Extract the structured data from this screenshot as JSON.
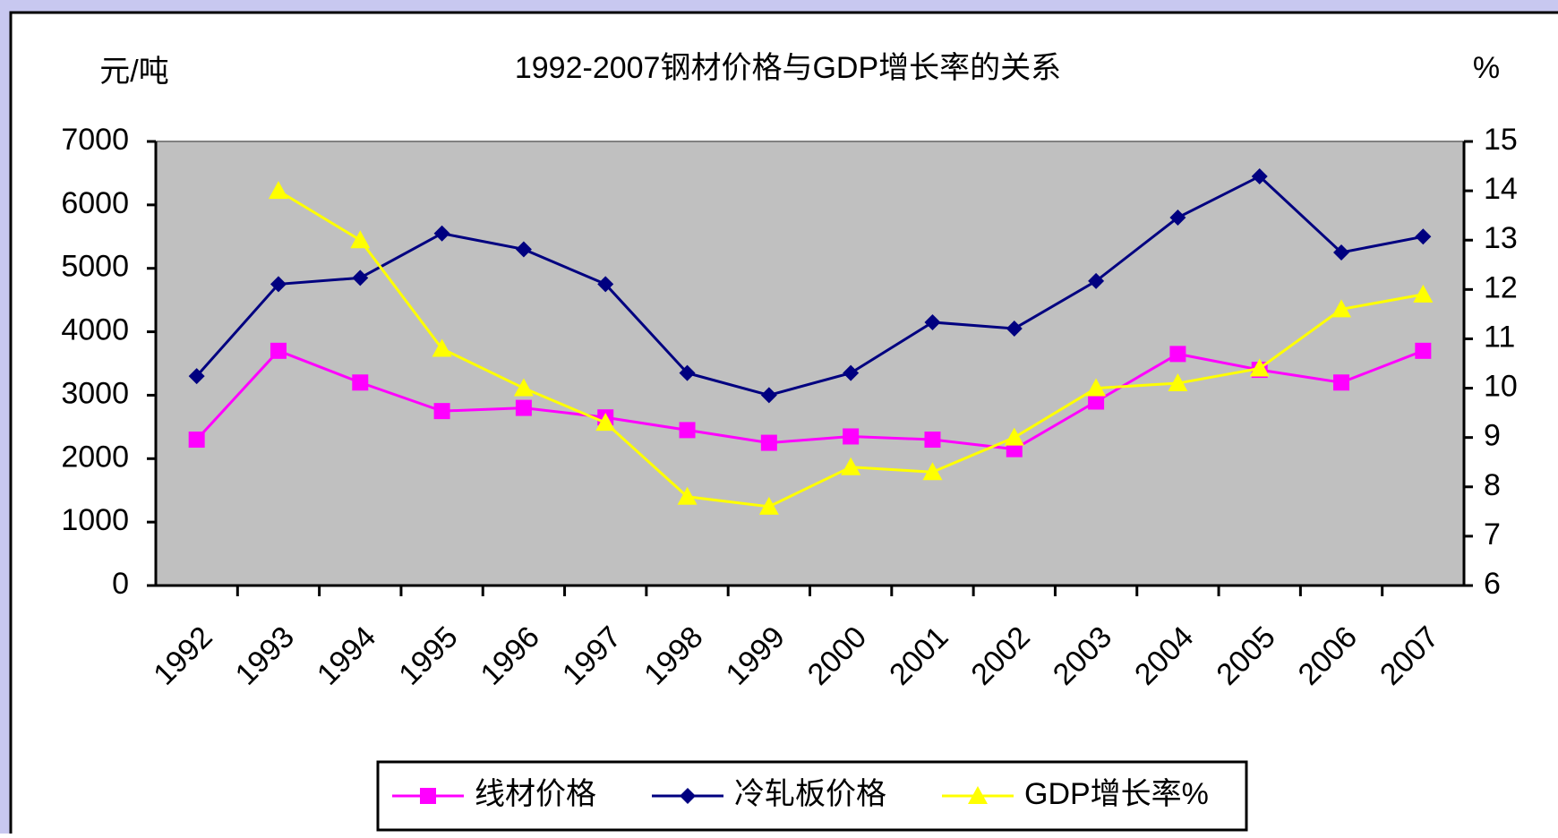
{
  "chart_data": {
    "type": "line",
    "title": "1992-2007钢材价格与GDP增长率的关系",
    "y_label": "元/吨",
    "y2_label": "%",
    "categories": [
      "1992",
      "1993",
      "1994",
      "1995",
      "1996",
      "1997",
      "1998",
      "1999",
      "2000",
      "2001",
      "2002",
      "2003",
      "2004",
      "2005",
      "2006",
      "2007"
    ],
    "series": [
      {
        "name": "线材价格",
        "color": "#ff00ff",
        "marker": "square",
        "values": [
          2300,
          3700,
          3200,
          2750,
          2800,
          2650,
          2450,
          2250,
          2350,
          2300,
          2150,
          2900,
          3650,
          3400,
          3200,
          3700
        ]
      },
      {
        "name": "冷轧板价格",
        "color": "#000080",
        "marker": "diamond",
        "values": [
          3300,
          4750,
          4850,
          5550,
          5300,
          4750,
          3350,
          3000,
          3350,
          4150,
          4050,
          4800,
          5800,
          6450,
          5250,
          5500
        ]
      },
      {
        "name": "GDP增长率%",
        "color": "#ffff00",
        "marker": "triangle",
        "axis": "y2",
        "values": [
          null,
          14.0,
          13.0,
          10.8,
          10.0,
          9.3,
          7.8,
          7.6,
          8.4,
          8.3,
          9.0,
          10.0,
          10.1,
          10.4,
          11.6,
          11.9
        ]
      }
    ],
    "ylim": [
      0,
      7000
    ],
    "yticks": [
      0,
      1000,
      2000,
      3000,
      4000,
      5000,
      6000,
      7000
    ],
    "y2lim": [
      6,
      15
    ],
    "y2ticks": [
      6,
      7,
      8,
      9,
      10,
      11,
      12,
      13,
      14,
      15
    ],
    "plot_background": "#c0c0c0",
    "legend": "bottom"
  }
}
